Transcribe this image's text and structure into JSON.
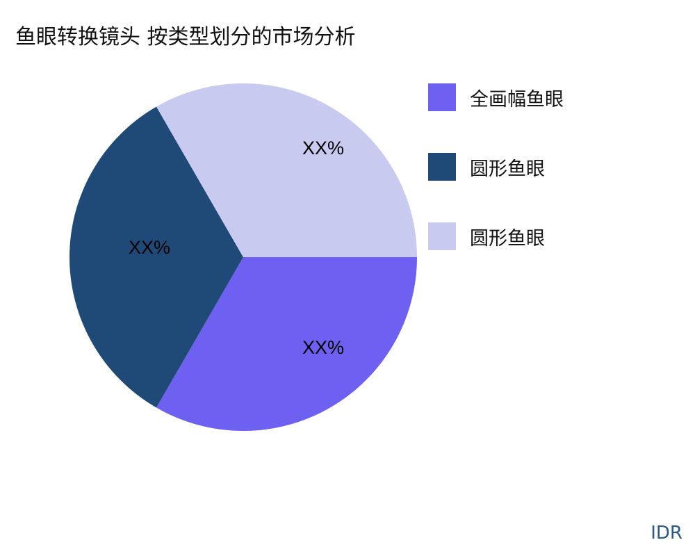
{
  "chart_data": {
    "type": "pie",
    "title": "鱼眼转换镜头 按类型划分的市场分析",
    "slices": [
      {
        "name": "全画幅鱼眼",
        "value": 33.3,
        "label": "XX%",
        "color": "#6e60f0"
      },
      {
        "name": "圆形鱼眼",
        "value": 33.3,
        "label": "XX%",
        "color": "#1f4a78"
      },
      {
        "name": "圆形鱼眼",
        "value": 33.3,
        "label": "XX%",
        "color": "#c9caf0"
      }
    ],
    "start_angle": "3 o'clock, clockwise",
    "legend_position": "right"
  },
  "brand": "IDR"
}
